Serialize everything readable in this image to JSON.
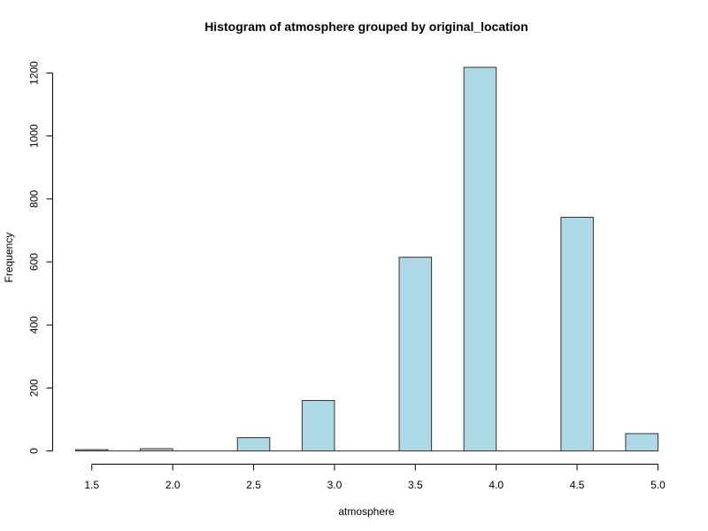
{
  "chart_data": {
    "type": "bar",
    "title": "Histogram of atmosphere grouped by original_location",
    "xlabel": "atmosphere",
    "ylabel": "Frequency",
    "bin_width": 0.2,
    "bins": [
      {
        "x0": 1.4,
        "x1": 1.6,
        "count": 4
      },
      {
        "x0": 1.6,
        "x1": 1.8,
        "count": 0
      },
      {
        "x0": 1.8,
        "x1": 2.0,
        "count": 7
      },
      {
        "x0": 2.0,
        "x1": 2.2,
        "count": 0
      },
      {
        "x0": 2.2,
        "x1": 2.4,
        "count": 0
      },
      {
        "x0": 2.4,
        "x1": 2.6,
        "count": 42
      },
      {
        "x0": 2.6,
        "x1": 2.8,
        "count": 0
      },
      {
        "x0": 2.8,
        "x1": 3.0,
        "count": 160
      },
      {
        "x0": 3.0,
        "x1": 3.2,
        "count": 0
      },
      {
        "x0": 3.2,
        "x1": 3.4,
        "count": 0
      },
      {
        "x0": 3.4,
        "x1": 3.6,
        "count": 615
      },
      {
        "x0": 3.6,
        "x1": 3.8,
        "count": 0
      },
      {
        "x0": 3.8,
        "x1": 4.0,
        "count": 1218
      },
      {
        "x0": 4.0,
        "x1": 4.2,
        "count": 0
      },
      {
        "x0": 4.2,
        "x1": 4.4,
        "count": 0
      },
      {
        "x0": 4.4,
        "x1": 4.6,
        "count": 742
      },
      {
        "x0": 4.6,
        "x1": 4.8,
        "count": 0
      },
      {
        "x0": 4.8,
        "x1": 5.0,
        "count": 55
      }
    ],
    "xlim": [
      1.4,
      5.0
    ],
    "ylim": [
      0,
      1200
    ],
    "xticks": [
      "1.5",
      "2.0",
      "2.5",
      "3.0",
      "3.5",
      "4.0",
      "4.5",
      "5.0"
    ],
    "yticks": [
      "0",
      "200",
      "400",
      "600",
      "800",
      "1000",
      "1200"
    ],
    "bar_color": "#add8e6",
    "bar_border_color": "#333333",
    "grid": false,
    "legend": "none"
  }
}
